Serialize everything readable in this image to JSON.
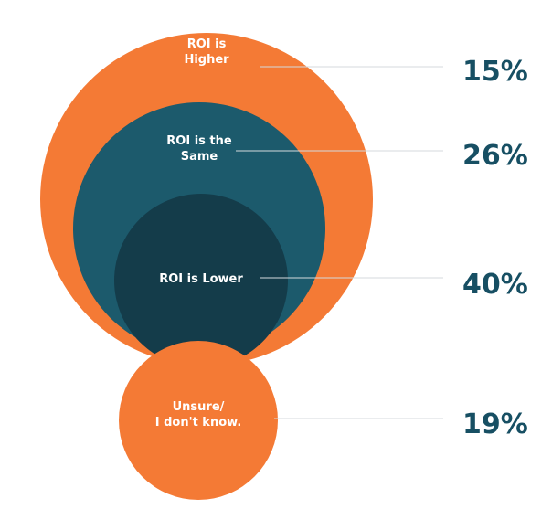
{
  "chart_data": {
    "type": "nested-bubble",
    "title": "",
    "categories": [
      "ROI is Higher",
      "ROI is the Same",
      "ROI is Lower",
      "Unsure/ I don't know."
    ],
    "values": [
      15,
      26,
      40,
      19
    ],
    "unit": "%",
    "items": [
      {
        "label_lines": [
          "ROI is",
          "Higher"
        ],
        "value_label": "15%",
        "color": "#f47a35"
      },
      {
        "label_lines": [
          "ROI is the",
          "Same"
        ],
        "value_label": "26%",
        "color": "#1c5a6c"
      },
      {
        "label_lines": [
          "ROI is Lower"
        ],
        "value_label": "40%",
        "color": "#143c4a"
      },
      {
        "label_lines": [
          "Unsure/",
          "I don't know."
        ],
        "value_label": "19%",
        "color": "#f47a35"
      }
    ],
    "legend": "none",
    "grid": false
  },
  "colors": {
    "orange": "#f47a35",
    "teal": "#1c5a6c",
    "dark_teal": "#143c4a",
    "percent_text": "#174f63",
    "leader_line": "#d4dadd"
  }
}
